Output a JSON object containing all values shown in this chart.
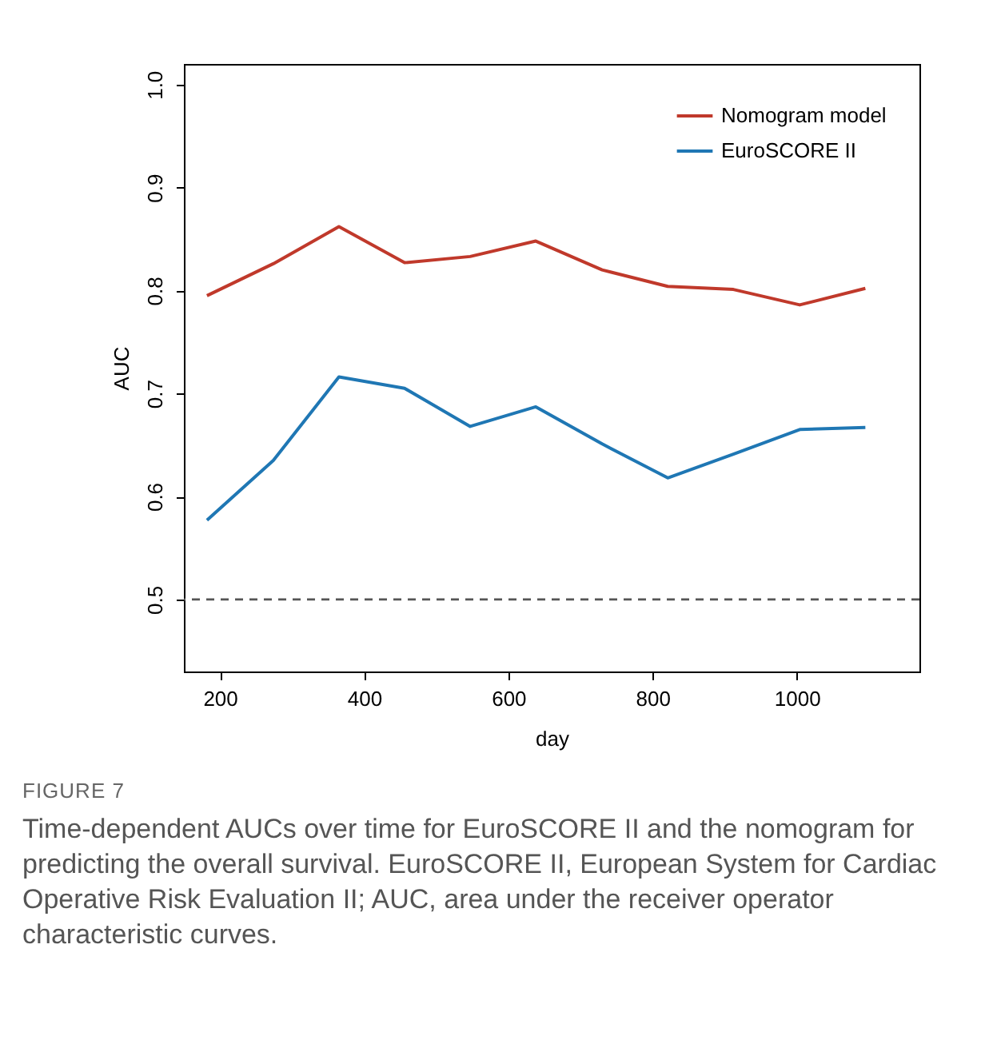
{
  "chart_data": {
    "type": "line",
    "xlabel": "day",
    "ylabel": "AUC",
    "x": [
      182,
      274,
      365,
      456,
      547,
      638,
      730,
      821,
      912,
      1004,
      1095
    ],
    "series": [
      {
        "name": "Nomogram model",
        "color": "#c0392b",
        "values": [
          0.795,
          0.826,
          0.862,
          0.827,
          0.833,
          0.848,
          0.82,
          0.804,
          0.801,
          0.786,
          0.802
        ]
      },
      {
        "name": "EuroSCORE II",
        "color": "#1f77b4",
        "values": [
          0.577,
          0.635,
          0.716,
          0.705,
          0.668,
          0.687,
          0.651,
          0.618,
          0.641,
          0.665,
          0.667
        ]
      }
    ],
    "xlim": [
      150,
      1170
    ],
    "xticks": [
      200,
      400,
      600,
      800,
      1000
    ],
    "ylim": [
      0.43,
      1.02
    ],
    "yticks": [
      0.5,
      0.6,
      0.7,
      0.8,
      0.9,
      {
        "value": 1,
        "label": "1.0"
      }
    ],
    "ref_lines": [
      {
        "axis": "y",
        "value": 0.5,
        "color": "#555555",
        "line_style": "dashed"
      }
    ],
    "grid": false,
    "legend": "top right",
    "marker": "none",
    "line_style": "solid",
    "annotations": [
      "FIGURE 7",
      "Time-dependent AUCs over time for EuroSCORE II and the nomogram for predicting the overall survival. EuroSCORE II, European System for Cardiac Operative Risk Evaluation II; AUC, area under the receiver operator characteristic curves."
    ]
  }
}
